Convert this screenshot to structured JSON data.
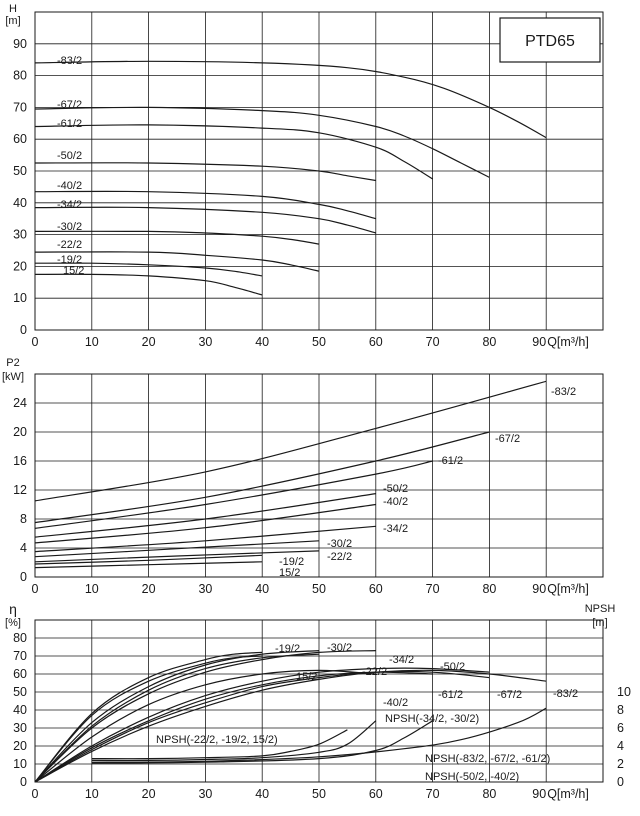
{
  "page": {
    "title": "PTD65"
  },
  "chart_data": [
    {
      "type": "line",
      "xlabel": "Q[m³/h]",
      "ylabel": "H [m]",
      "xlim": [
        0,
        100
      ],
      "ylim": [
        0,
        100
      ],
      "xticks": [
        0,
        10,
        20,
        30,
        40,
        50,
        60,
        70,
        80,
        90
      ],
      "yticks": [
        0,
        10,
        20,
        30,
        40,
        50,
        60,
        70,
        80,
        90
      ],
      "grid": true,
      "series": [
        {
          "name": "-83/2",
          "x": [
            0,
            20,
            40,
            55,
            65,
            72,
            80,
            85,
            90
          ],
          "y": [
            84,
            84.5,
            84,
            82.5,
            79.5,
            76,
            70,
            65.5,
            60.5
          ]
        },
        {
          "name": "-67/2",
          "x": [
            0,
            20,
            40,
            50,
            60,
            65,
            70,
            75,
            80
          ],
          "y": [
            69.5,
            70,
            69,
            67.5,
            64,
            61,
            57,
            52.5,
            48
          ]
        },
        {
          "name": "-61/2",
          "x": [
            0,
            20,
            40,
            50,
            60,
            65,
            70
          ],
          "y": [
            64,
            64.5,
            63.5,
            62,
            57.5,
            53,
            47.5
          ]
        },
        {
          "name": "-50/2",
          "x": [
            0,
            20,
            40,
            50,
            55,
            60
          ],
          "y": [
            52.5,
            52.5,
            51.5,
            50,
            48.5,
            47
          ]
        },
        {
          "name": "-40/2",
          "x": [
            0,
            20,
            40,
            50,
            55,
            60
          ],
          "y": [
            43.5,
            43.5,
            42,
            39.5,
            37.5,
            35
          ]
        },
        {
          "name": "-34/2",
          "x": [
            0,
            20,
            40,
            50,
            55,
            60
          ],
          "y": [
            38.5,
            38.5,
            37,
            35,
            33,
            30.5
          ]
        },
        {
          "name": "-30/2",
          "x": [
            0,
            20,
            30,
            40,
            45,
            50
          ],
          "y": [
            31,
            31,
            30.5,
            29.5,
            28.5,
            27
          ]
        },
        {
          "name": "-22/2",
          "x": [
            0,
            20,
            30,
            40,
            45,
            50
          ],
          "y": [
            24.5,
            24.5,
            23.5,
            22,
            20.5,
            18.5
          ]
        },
        {
          "name": "-19/2",
          "x": [
            0,
            10,
            20,
            30,
            35,
            40
          ],
          "y": [
            21,
            21,
            20.5,
            19.5,
            18.5,
            17
          ]
        },
        {
          "name": "15/2",
          "x": [
            0,
            10,
            20,
            30,
            35,
            40
          ],
          "y": [
            17.5,
            17.5,
            17,
            15.5,
            13.5,
            11
          ]
        }
      ]
    },
    {
      "type": "line",
      "title": "P2",
      "xlabel": "Q[m³/h]",
      "ylabel": "P2 [kW]",
      "xlim": [
        0,
        100
      ],
      "ylim": [
        0,
        28
      ],
      "xticks": [
        0,
        10,
        20,
        30,
        40,
        50,
        60,
        70,
        80,
        90
      ],
      "yticks": [
        0,
        4,
        8,
        12,
        16,
        20,
        24
      ],
      "grid": true,
      "series": [
        {
          "name": "-83/2",
          "x": [
            0,
            30,
            60,
            90
          ],
          "y": [
            10.5,
            14.5,
            20.5,
            27
          ]
        },
        {
          "name": "-67/2",
          "x": [
            0,
            30,
            60,
            80
          ],
          "y": [
            7.5,
            11,
            16,
            20
          ]
        },
        {
          "name": "-61/2",
          "x": [
            0,
            30,
            60,
            70
          ],
          "y": [
            6.7,
            10,
            14.2,
            16
          ]
        },
        {
          "name": "-50/2",
          "x": [
            0,
            30,
            60
          ],
          "y": [
            5.5,
            8,
            11.5
          ]
        },
        {
          "name": "-40/2",
          "x": [
            0,
            30,
            60
          ],
          "y": [
            4.7,
            6.8,
            10
          ]
        },
        {
          "name": "-34/2",
          "x": [
            0,
            30,
            60
          ],
          "y": [
            3.5,
            5,
            7
          ]
        },
        {
          "name": "-30/2",
          "x": [
            0,
            25,
            50
          ],
          "y": [
            2.8,
            3.9,
            5
          ]
        },
        {
          "name": "-22/2",
          "x": [
            0,
            25,
            50
          ],
          "y": [
            2.1,
            2.9,
            3.6
          ]
        },
        {
          "name": "-19/2",
          "x": [
            0,
            20,
            40
          ],
          "y": [
            1.8,
            2.3,
            3
          ]
        },
        {
          "name": "15/2",
          "x": [
            0,
            20,
            40
          ],
          "y": [
            1.3,
            1.7,
            2.1
          ]
        }
      ]
    },
    {
      "type": "line",
      "xlabel": "Q[m³/h]",
      "ylabel": "η [%]",
      "y2label": "NPSH [m]",
      "xlim": [
        0,
        100
      ],
      "ylim": [
        0,
        90
      ],
      "y2lim": [
        0,
        18
      ],
      "xticks": [
        0,
        10,
        20,
        30,
        40,
        50,
        60,
        70,
        80,
        90
      ],
      "yticks": [
        0,
        10,
        20,
        30,
        40,
        50,
        60,
        70,
        80
      ],
      "y2ticks": [
        0,
        2,
        4,
        6,
        8,
        10
      ],
      "grid": true,
      "series": [
        {
          "name": "-19/2",
          "x": [
            0,
            10,
            20,
            30,
            35,
            40
          ],
          "y": [
            0,
            38,
            58,
            68,
            71,
            72
          ]
        },
        {
          "name": "15/2",
          "x": [
            0,
            10,
            20,
            30,
            35,
            40
          ],
          "y": [
            0,
            37,
            56,
            66,
            69,
            70
          ]
        },
        {
          "name": "-30/2",
          "x": [
            0,
            10,
            20,
            30,
            40,
            50
          ],
          "y": [
            0,
            33,
            53,
            65,
            71,
            73
          ]
        },
        {
          "name": "-22/2",
          "x": [
            0,
            10,
            20,
            30,
            40,
            50
          ],
          "y": [
            0,
            31,
            51,
            63,
            69,
            71
          ]
        },
        {
          "name": "-34/2",
          "x": [
            0,
            10,
            20,
            30,
            40,
            50,
            60
          ],
          "y": [
            0,
            30,
            49,
            61,
            68,
            72,
            73
          ]
        },
        {
          "name": "-40/2",
          "x": [
            0,
            10,
            20,
            30,
            40,
            50,
            60
          ],
          "y": [
            0,
            25,
            43,
            54,
            60,
            62,
            60
          ]
        },
        {
          "name": "-50/2",
          "x": [
            0,
            10,
            20,
            30,
            40,
            50,
            60,
            70,
            80
          ],
          "y": [
            0,
            20,
            36,
            48,
            56,
            61,
            63,
            63,
            61
          ]
        },
        {
          "name": "-61/2",
          "x": [
            0,
            10,
            20,
            30,
            40,
            50,
            60,
            70
          ],
          "y": [
            0,
            19,
            34,
            46,
            54,
            59,
            61,
            60
          ]
        },
        {
          "name": "-67/2",
          "x": [
            0,
            10,
            20,
            30,
            40,
            50,
            60,
            70,
            80
          ],
          "y": [
            0,
            18,
            33,
            44,
            53,
            58,
            61,
            61,
            58
          ]
        },
        {
          "name": "-83/2",
          "x": [
            0,
            10,
            20,
            30,
            40,
            50,
            60,
            70,
            80,
            90
          ],
          "y": [
            0,
            17,
            31,
            42,
            51,
            57,
            61,
            62,
            60,
            56
          ]
        },
        {
          "name": "NPSH(-22/2, -19/2,  15/2)",
          "axis": "right",
          "x": [
            10,
            20,
            30,
            40,
            45,
            50,
            55
          ],
          "y": [
            2.6,
            2.6,
            2.7,
            2.9,
            3.4,
            4.2,
            5.8
          ]
        },
        {
          "name": "NPSH(-34/2, -30/2)",
          "axis": "right",
          "x": [
            10,
            20,
            30,
            40,
            50,
            55,
            60
          ],
          "y": [
            2.4,
            2.4,
            2.5,
            2.7,
            3.3,
            4.2,
            6.8
          ]
        },
        {
          "name": "NPSH(-83/2, -67/2, -61/2)",
          "axis": "right",
          "x": [
            10,
            30,
            50,
            65,
            75,
            85,
            90
          ],
          "y": [
            2.2,
            2.3,
            2.8,
            3.7,
            4.7,
            6.6,
            8.2
          ]
        },
        {
          "name": "NPSH(-50/2, -40/2)",
          "axis": "right",
          "x": [
            10,
            30,
            50,
            60,
            65,
            70
          ],
          "y": [
            2.1,
            2.2,
            2.6,
            3.5,
            4.9,
            6.8
          ]
        }
      ]
    }
  ]
}
